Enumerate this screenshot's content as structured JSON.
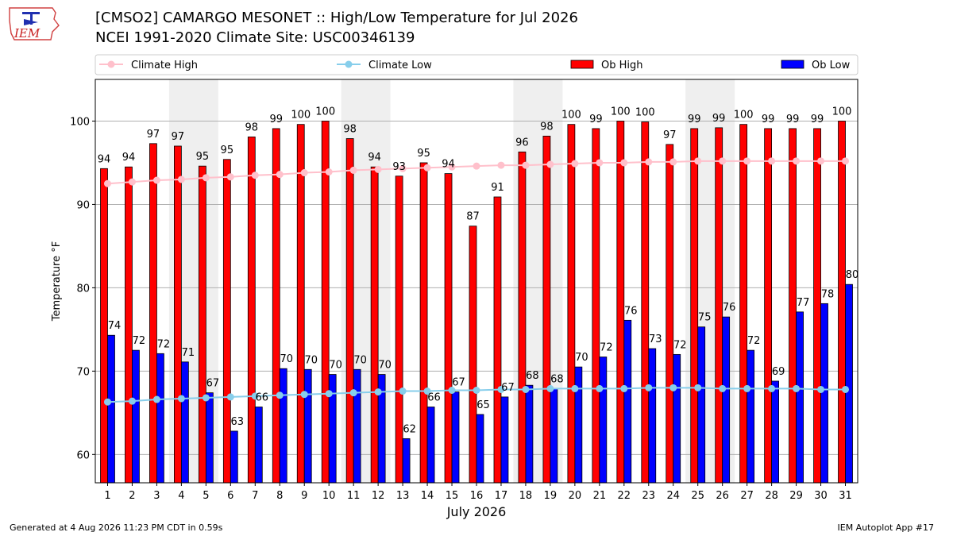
{
  "header": {
    "title_line1": "[CMSO2] CAMARGO MESONET :: High/Low Temperature for Jul 2026",
    "title_line2": "NCEI 1991-2020 Climate Site: USC00346139",
    "logo_text": "IEM"
  },
  "footer": {
    "generated": "Generated at 4 Aug 2026 11:23 PM CDT in 0.59s",
    "app": "IEM Autoplot App #17"
  },
  "chart_data": {
    "type": "bar",
    "xlabel": "July 2026",
    "ylabel": "Temperature °F",
    "ylim": [
      56.6,
      105.0
    ],
    "yticks": [
      60,
      70,
      80,
      90,
      100
    ],
    "grid": "horizontal",
    "legend_placement": "top",
    "weekend_shading_days": [
      4,
      5,
      11,
      12,
      18,
      19,
      25,
      26
    ],
    "categories": [
      "1",
      "2",
      "3",
      "4",
      "5",
      "6",
      "7",
      "8",
      "9",
      "10",
      "11",
      "12",
      "13",
      "14",
      "15",
      "16",
      "17",
      "18",
      "19",
      "20",
      "21",
      "22",
      "23",
      "24",
      "25",
      "26",
      "27",
      "28",
      "29",
      "30",
      "31"
    ],
    "series": [
      {
        "name": "Climate High",
        "kind": "line",
        "color": "#ffc0cb",
        "values": [
          92.5,
          92.7,
          92.9,
          93.0,
          93.2,
          93.3,
          93.5,
          93.6,
          93.8,
          93.9,
          94.1,
          94.2,
          94.3,
          94.4,
          94.5,
          94.6,
          94.7,
          94.7,
          94.8,
          94.9,
          95.0,
          95.0,
          95.1,
          95.1,
          95.2,
          95.2,
          95.2,
          95.2,
          95.2,
          95.2,
          95.2
        ]
      },
      {
        "name": "Climate Low",
        "kind": "line",
        "color": "#87ceeb",
        "values": [
          66.3,
          66.4,
          66.6,
          66.7,
          66.8,
          66.9,
          67.0,
          67.1,
          67.2,
          67.3,
          67.4,
          67.5,
          67.6,
          67.6,
          67.7,
          67.7,
          67.8,
          67.8,
          67.9,
          67.9,
          67.9,
          67.9,
          68.0,
          68.0,
          68.0,
          67.9,
          67.9,
          67.9,
          67.9,
          67.8,
          67.8
        ]
      },
      {
        "name": "Ob High",
        "kind": "bar",
        "color": "#ff0000",
        "values": [
          94.3,
          94.5,
          97.3,
          97.0,
          94.6,
          95.4,
          98.1,
          99.1,
          99.6,
          100.0,
          97.9,
          94.5,
          93.4,
          95.0,
          93.7,
          87.4,
          90.9,
          96.3,
          98.2,
          99.6,
          99.1,
          100.0,
          99.9,
          97.2,
          99.1,
          99.2,
          99.6,
          99.1,
          99.1,
          99.1,
          100.0
        ],
        "labels": [
          "94",
          "94",
          "97",
          "97",
          "95",
          "95",
          "98",
          "99",
          "100",
          "100",
          "98",
          "94",
          "93",
          "95",
          "94",
          "87",
          "91",
          "96",
          "98",
          "100",
          "99",
          "100",
          "100",
          "97",
          "99",
          "99",
          "100",
          "99",
          "99",
          "99",
          "100"
        ]
      },
      {
        "name": "Ob Low",
        "kind": "bar",
        "color": "#0000ff",
        "values": [
          74.3,
          72.5,
          72.1,
          71.1,
          67.4,
          62.8,
          65.7,
          70.3,
          70.2,
          69.6,
          70.2,
          69.6,
          61.9,
          65.7,
          67.5,
          64.8,
          66.9,
          68.3,
          67.9,
          70.5,
          71.7,
          76.1,
          72.7,
          72.0,
          75.3,
          76.5,
          72.5,
          68.8,
          77.1,
          78.1,
          80.4
        ],
        "labels": [
          "74",
          "72",
          "72",
          "71",
          "67",
          "63",
          "66",
          "70",
          "70",
          "70",
          "70",
          "70",
          "62",
          "66",
          "67",
          "65",
          "67",
          "68",
          "68",
          "70",
          "72",
          "76",
          "73",
          "72",
          "75",
          "76",
          "72",
          "69",
          "77",
          "78",
          "80"
        ]
      }
    ]
  }
}
